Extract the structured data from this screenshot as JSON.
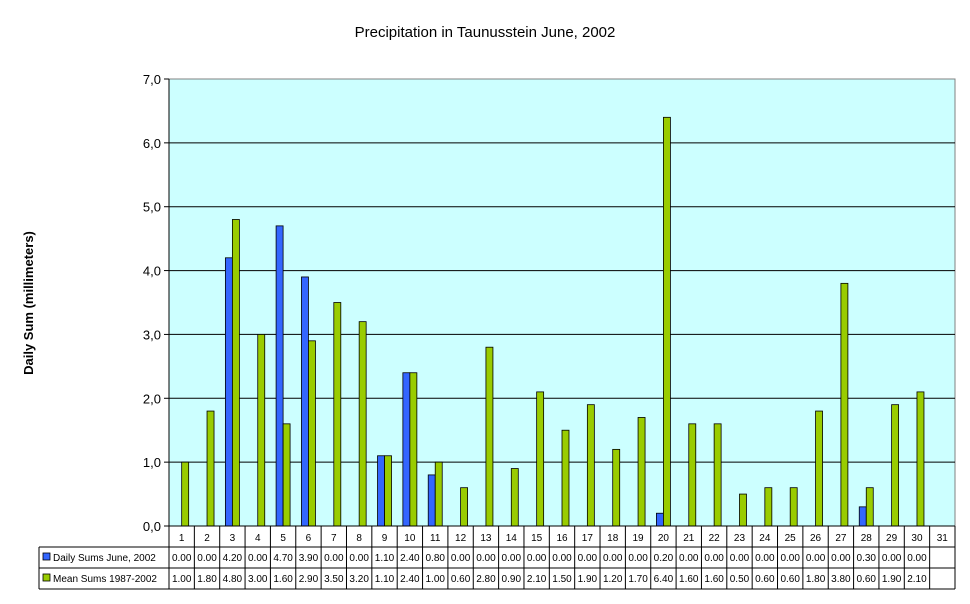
{
  "chart_data": {
    "type": "bar",
    "title": "Precipitation in Taunusstein June, 2002",
    "xlabel": "",
    "ylabel": "Daily Sum (millimeters)",
    "ylim": [
      0,
      7
    ],
    "yticks": [
      "0,0",
      "1,0",
      "2,0",
      "3,0",
      "4,0",
      "5,0",
      "6,0",
      "7,0"
    ],
    "grid": true,
    "legend_placement": "data-table-left",
    "plot_background": "#ccffff",
    "categories": [
      "1",
      "2",
      "3",
      "4",
      "5",
      "6",
      "7",
      "8",
      "9",
      "10",
      "11",
      "12",
      "13",
      "14",
      "15",
      "16",
      "17",
      "18",
      "19",
      "20",
      "21",
      "22",
      "23",
      "24",
      "25",
      "26",
      "27",
      "28",
      "29",
      "30",
      "31"
    ],
    "series": [
      {
        "name": "Daily Sums June, 2002",
        "color": "#3366ff",
        "values": [
          0,
          0,
          4.2,
          0,
          4.7,
          3.9,
          0,
          0,
          1.1,
          2.4,
          0.8,
          0,
          0,
          0,
          0,
          0,
          0,
          0,
          0,
          0.2,
          0,
          0,
          0,
          0,
          0,
          0,
          0,
          0.3,
          0,
          0,
          null
        ],
        "labels": [
          "0.00",
          "0.00",
          "4.20",
          "0.00",
          "4.70",
          "3.90",
          "0.00",
          "0.00",
          "1.10",
          "2.40",
          "0.80",
          "0.00",
          "0.00",
          "0.00",
          "0.00",
          "0.00",
          "0.00",
          "0.00",
          "0.00",
          "0.20",
          "0.00",
          "0.00",
          "0.00",
          "0.00",
          "0.00",
          "0.00",
          "0.00",
          "0.30",
          "0.00",
          "0.00",
          ""
        ]
      },
      {
        "name": "Mean Sums 1987-2002",
        "color": "#99cc00",
        "values": [
          1,
          1.8,
          4.8,
          3,
          1.6,
          2.9,
          3.5,
          3.2,
          1.1,
          2.4,
          1,
          0.6,
          2.8,
          0.9,
          2.1,
          1.5,
          1.9,
          1.2,
          1.7,
          6.4,
          1.6,
          1.6,
          0.5,
          0.6,
          0.6,
          1.8,
          3.8,
          0.6,
          1.9,
          2.1,
          null
        ],
        "labels": [
          "1.00",
          "1.80",
          "4.80",
          "3.00",
          "1.60",
          "2.90",
          "3.50",
          "3.20",
          "1.10",
          "2.40",
          "1.00",
          "0.60",
          "2.80",
          "0.90",
          "2.10",
          "1.50",
          "1.90",
          "1.20",
          "1.70",
          "6.40",
          "1.60",
          "1.60",
          "0.50",
          "0.60",
          "0.60",
          "1.80",
          "3.80",
          "0.60",
          "1.90",
          "2.10",
          ""
        ]
      }
    ]
  }
}
